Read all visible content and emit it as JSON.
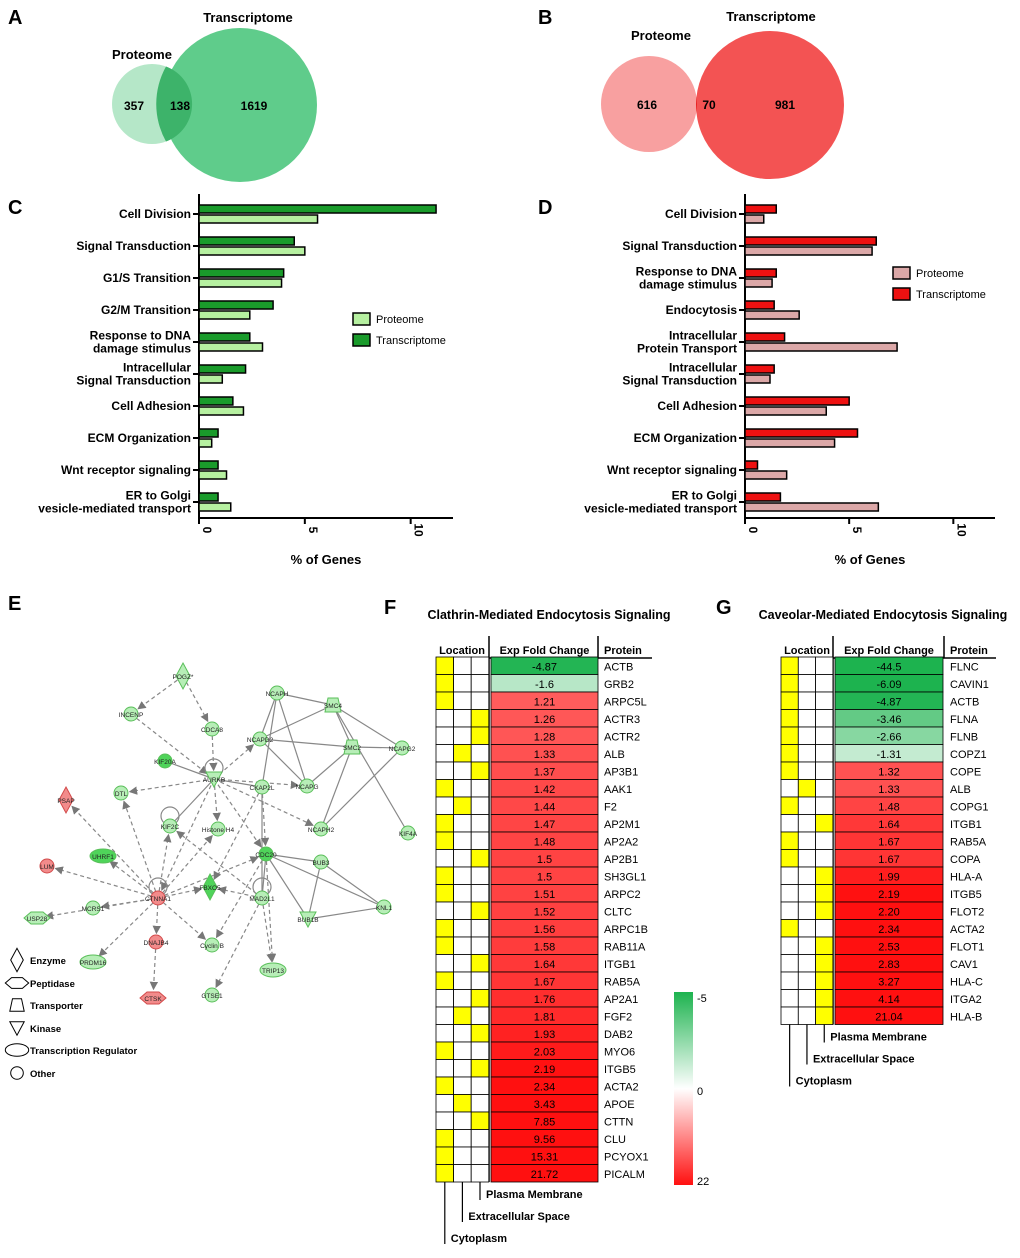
{
  "panel_letters": {
    "A": "A",
    "B": "B",
    "C": "C",
    "D": "D",
    "E": "E",
    "F": "F",
    "G": "G"
  },
  "colors": {
    "green_dark": "#1a9b2b",
    "green_light": "#b6f0a0",
    "red_dark": "#ee1111",
    "pink_light": "#dca8a8",
    "venn_green_small": "#b5e7c8",
    "venn_green_big": "#5fcc8b",
    "venn_green_overlap": "#3db36a",
    "venn_red_small": "#f8a0a0",
    "venn_red_big": "#f35353",
    "venn_red_overlap": "#e82525",
    "yellow": "#ffff00",
    "heat_green": "#1db34f",
    "heat_red": "#ff1010"
  },
  "venn_a": {
    "left_label": "Proteome",
    "right_label": "Transcriptome",
    "left_only": "357",
    "overlap": "138",
    "right_only": "1619"
  },
  "venn_b": {
    "left_label": "Proteome",
    "right_label": "Transcriptome",
    "left_only": "616",
    "overlap": "70",
    "right_only": "981"
  },
  "chart_data": [
    {
      "panel": "C",
      "type": "bar",
      "orientation": "horizontal",
      "xlabel": "% of Genes",
      "xlim": [
        0,
        12
      ],
      "xticks": [
        "0",
        "5",
        "10"
      ],
      "categories": [
        "Cell Division",
        "Signal Transduction",
        "G1/S Transition",
        "G2/M Transition",
        "Response to DNA damage stimulus",
        "Intracellular Signal Transduction",
        "Cell Adhesion",
        "ECM Organization",
        "Wnt receptor signaling",
        "ER to Golgi vesicle-mediated transport"
      ],
      "category_lines": [
        [
          "Cell Division"
        ],
        [
          "Signal Transduction"
        ],
        [
          "G1/S Transition"
        ],
        [
          "G2/M Transition"
        ],
        [
          "Response to DNA",
          "damage stimulus"
        ],
        [
          "Intracellular",
          "Signal Transduction"
        ],
        [
          "Cell Adhesion"
        ],
        [
          "ECM Organization"
        ],
        [
          "Wnt receptor signaling"
        ],
        [
          "ER to Golgi",
          "vesicle-mediated transport"
        ]
      ],
      "series": [
        {
          "name": "Transcriptome",
          "values": [
            11.2,
            4.5,
            4.0,
            3.5,
            2.4,
            2.2,
            1.6,
            0.9,
            0.9,
            0.9
          ]
        },
        {
          "name": "Proteome",
          "values": [
            5.6,
            5.0,
            3.9,
            2.4,
            3.0,
            1.1,
            2.1,
            0.6,
            1.3,
            1.5
          ]
        }
      ],
      "legend": [
        {
          "name": "Proteome"
        },
        {
          "name": "Transcriptome"
        }
      ],
      "legend_position": "right"
    },
    {
      "panel": "D",
      "type": "bar",
      "orientation": "horizontal",
      "xlabel": "% of Genes",
      "xlim": [
        0,
        12
      ],
      "xticks": [
        "0",
        "5",
        "10"
      ],
      "categories": [
        "Cell Division",
        "Signal Transduction",
        "Response to DNA damage stimulus",
        "Endocytosis",
        "Intracellular Protein Transport",
        "Intracellular Signal Transduction",
        "Cell Adhesion",
        "ECM Organization",
        "Wnt receptor signaling",
        "ER to Golgi vesicle-mediated transport"
      ],
      "category_lines": [
        [
          "Cell Division"
        ],
        [
          "Signal Transduction"
        ],
        [
          "Response to DNA",
          "damage stimulus"
        ],
        [
          "Endocytosis"
        ],
        [
          "Intracellular",
          "Protein Transport"
        ],
        [
          "Intracellular",
          "Signal Transduction"
        ],
        [
          "Cell Adhesion"
        ],
        [
          "ECM Organization"
        ],
        [
          "Wnt receptor signaling"
        ],
        [
          "ER to Golgi",
          "vesicle-mediated transport"
        ]
      ],
      "series": [
        {
          "name": "Transcriptome",
          "values": [
            1.5,
            6.3,
            1.5,
            1.4,
            1.9,
            1.4,
            5.0,
            5.4,
            0.6,
            1.7
          ]
        },
        {
          "name": "Proteome",
          "values": [
            0.9,
            6.1,
            1.3,
            2.6,
            7.3,
            1.2,
            3.9,
            4.3,
            2.0,
            6.4
          ]
        }
      ],
      "legend": [
        {
          "name": "Proteome"
        },
        {
          "name": "Transcriptome"
        }
      ],
      "legend_position": "top-right"
    },
    {
      "panel": "F",
      "type": "heatmap",
      "title": "Clathrin-Mediated Endocytosis Signaling",
      "headers": {
        "location": "Location",
        "fold": "Exp Fold Change",
        "protein": "Protein"
      },
      "location_legend": [
        "Plasma Membrane",
        "Extracellular Space",
        "Cytoplasm"
      ],
      "colorbar": {
        "max_label": "-5",
        "mid_label": "0",
        "min_label": "22"
      },
      "rows": [
        {
          "protein": "ACTB",
          "fold": "-4.87",
          "loc": [
            1,
            0,
            0
          ]
        },
        {
          "protein": "GRB2",
          "fold": "-1.6",
          "loc": [
            1,
            0,
            0
          ]
        },
        {
          "protein": "ARPC5L",
          "fold": "1.21",
          "loc": [
            1,
            0,
            0
          ]
        },
        {
          "protein": "ACTR3",
          "fold": "1.26",
          "loc": [
            0,
            0,
            1
          ]
        },
        {
          "protein": "ACTR2",
          "fold": "1.28",
          "loc": [
            0,
            0,
            1
          ]
        },
        {
          "protein": "ALB",
          "fold": "1.33",
          "loc": [
            0,
            1,
            0
          ]
        },
        {
          "protein": "AP3B1",
          "fold": "1.37",
          "loc": [
            0,
            0,
            1
          ]
        },
        {
          "protein": "AAK1",
          "fold": "1.42",
          "loc": [
            1,
            0,
            0
          ]
        },
        {
          "protein": "F2",
          "fold": "1.44",
          "loc": [
            0,
            1,
            0
          ]
        },
        {
          "protein": "AP2M1",
          "fold": "1.47",
          "loc": [
            1,
            0,
            0
          ]
        },
        {
          "protein": "AP2A2",
          "fold": "1.48",
          "loc": [
            1,
            0,
            0
          ]
        },
        {
          "protein": "AP2B1",
          "fold": "1.5",
          "loc": [
            0,
            0,
            1
          ]
        },
        {
          "protein": "SH3GL1",
          "fold": "1.5",
          "loc": [
            1,
            0,
            0
          ]
        },
        {
          "protein": "ARPC2",
          "fold": "1.51",
          "loc": [
            1,
            0,
            0
          ]
        },
        {
          "protein": "CLTC",
          "fold": "1.52",
          "loc": [
            0,
            0,
            1
          ]
        },
        {
          "protein": "ARPC1B",
          "fold": "1.56",
          "loc": [
            1,
            0,
            0
          ]
        },
        {
          "protein": "RAB11A",
          "fold": "1.58",
          "loc": [
            1,
            0,
            0
          ]
        },
        {
          "protein": "ITGB1",
          "fold": "1.64",
          "loc": [
            0,
            0,
            1
          ]
        },
        {
          "protein": "RAB5A",
          "fold": "1.67",
          "loc": [
            1,
            0,
            0
          ]
        },
        {
          "protein": "AP2A1",
          "fold": "1.76",
          "loc": [
            0,
            0,
            1
          ]
        },
        {
          "protein": "FGF2",
          "fold": "1.81",
          "loc": [
            0,
            1,
            0
          ]
        },
        {
          "protein": "DAB2",
          "fold": "1.93",
          "loc": [
            0,
            0,
            1
          ]
        },
        {
          "protein": "MYO6",
          "fold": "2.03",
          "loc": [
            1,
            0,
            0
          ]
        },
        {
          "protein": "ITGB5",
          "fold": "2.19",
          "loc": [
            0,
            0,
            1
          ]
        },
        {
          "protein": "ACTA2",
          "fold": "2.34",
          "loc": [
            1,
            0,
            0
          ]
        },
        {
          "protein": "APOE",
          "fold": "3.43",
          "loc": [
            0,
            1,
            0
          ]
        },
        {
          "protein": "CTTN",
          "fold": "7.85",
          "loc": [
            0,
            0,
            1
          ]
        },
        {
          "protein": "CLU",
          "fold": "9.56",
          "loc": [
            1,
            0,
            0
          ]
        },
        {
          "protein": "PCYOX1",
          "fold": "15.31",
          "loc": [
            1,
            0,
            0
          ]
        },
        {
          "protein": "PICALM",
          "fold": "21.72",
          "loc": [
            1,
            0,
            0
          ]
        }
      ]
    },
    {
      "panel": "G",
      "type": "heatmap",
      "title": "Caveolar-Mediated Endocytosis Signaling",
      "headers": {
        "location": "Location",
        "fold": "Exp Fold Change",
        "protein": "Protein"
      },
      "location_legend": [
        "Plasma Membrane",
        "Extracellular Space",
        "Cytoplasm"
      ],
      "rows": [
        {
          "protein": "FLNC",
          "fold": "-44.5",
          "loc": [
            1,
            0,
            0
          ]
        },
        {
          "protein": "CAVIN1",
          "fold": "-6.09",
          "loc": [
            1,
            0,
            0
          ]
        },
        {
          "protein": "ACTB",
          "fold": "-4.87",
          "loc": [
            1,
            0,
            0
          ]
        },
        {
          "protein": "FLNA",
          "fold": "-3.46",
          "loc": [
            1,
            0,
            0
          ]
        },
        {
          "protein": "FLNB",
          "fold": "-2.66",
          "loc": [
            1,
            0,
            0
          ]
        },
        {
          "protein": "COPZ1",
          "fold": "-1.31",
          "loc": [
            1,
            0,
            0
          ]
        },
        {
          "protein": "COPE",
          "fold": "1.32",
          "loc": [
            1,
            0,
            0
          ]
        },
        {
          "protein": "ALB",
          "fold": "1.33",
          "loc": [
            0,
            1,
            0
          ]
        },
        {
          "protein": "COPG1",
          "fold": "1.48",
          "loc": [
            1,
            0,
            0
          ]
        },
        {
          "protein": "ITGB1",
          "fold": "1.64",
          "loc": [
            0,
            0,
            1
          ]
        },
        {
          "protein": "RAB5A",
          "fold": "1.67",
          "loc": [
            1,
            0,
            0
          ]
        },
        {
          "protein": "COPA",
          "fold": "1.67",
          "loc": [
            1,
            0,
            0
          ]
        },
        {
          "protein": "HLA-A",
          "fold": "1.99",
          "loc": [
            0,
            0,
            1
          ]
        },
        {
          "protein": "ITGB5",
          "fold": "2.19",
          "loc": [
            0,
            0,
            1
          ]
        },
        {
          "protein": "FLOT2",
          "fold": "2.20",
          "loc": [
            0,
            0,
            1
          ]
        },
        {
          "protein": "ACTA2",
          "fold": "2.34",
          "loc": [
            1,
            0,
            0
          ]
        },
        {
          "protein": "FLOT1",
          "fold": "2.53",
          "loc": [
            0,
            0,
            1
          ]
        },
        {
          "protein": "CAV1",
          "fold": "2.83",
          "loc": [
            0,
            0,
            1
          ]
        },
        {
          "protein": "HLA-C",
          "fold": "3.27",
          "loc": [
            0,
            0,
            1
          ]
        },
        {
          "protein": "ITGA2",
          "fold": "4.14",
          "loc": [
            0,
            0,
            1
          ]
        },
        {
          "protein": "HLA-B",
          "fold": "21.04",
          "loc": [
            0,
            0,
            1
          ]
        }
      ]
    }
  ],
  "network": {
    "nodes": [
      {
        "id": "POGZ",
        "label": "POGZ*",
        "type": "enzyme",
        "color": "pale"
      },
      {
        "id": "INCENP",
        "label": "INCENP",
        "type": "other",
        "color": "pale"
      },
      {
        "id": "CDCA8",
        "label": "CDCA8",
        "type": "other",
        "color": "pale"
      },
      {
        "id": "NCAPH",
        "label": "NCAPH",
        "type": "other",
        "color": "pale"
      },
      {
        "id": "SMC4",
        "label": "SMC4",
        "type": "transporter",
        "color": "pale"
      },
      {
        "id": "NCAPD2",
        "label": "NCAPD2",
        "type": "other",
        "color": "pale"
      },
      {
        "id": "SMC2",
        "label": "SMC2",
        "type": "transporter",
        "color": "pale"
      },
      {
        "id": "NCAPG2",
        "label": "NCAPG2",
        "type": "other",
        "color": "pale"
      },
      {
        "id": "KIF20A",
        "label": "KIF20A",
        "type": "other",
        "color": "bright"
      },
      {
        "id": "AURKB",
        "label": "AURKB",
        "type": "kinase",
        "color": "pale"
      },
      {
        "id": "NCAPG",
        "label": "NCAPG",
        "type": "other",
        "color": "pale"
      },
      {
        "id": "CKAP2L",
        "label": "CKAP2L",
        "type": "other",
        "color": "pale"
      },
      {
        "id": "NCAPH2",
        "label": "NCAPH2",
        "type": "other",
        "color": "pale"
      },
      {
        "id": "KIF4A",
        "label": "KIF4A",
        "type": "other",
        "color": "pale"
      },
      {
        "id": "PSAP",
        "label": "PSAP",
        "type": "enzyme",
        "color": "red"
      },
      {
        "id": "DTL",
        "label": "DTL",
        "type": "other",
        "color": "pale"
      },
      {
        "id": "KIF2C",
        "label": "KIF2C",
        "type": "other",
        "color": "pale"
      },
      {
        "id": "HistoneH4",
        "label": "Histone H4",
        "type": "other",
        "color": "pale"
      },
      {
        "id": "UHRF1",
        "label": "UHRF1",
        "type": "transcription",
        "color": "bright"
      },
      {
        "id": "CDC20",
        "label": "CDC20",
        "type": "other",
        "color": "bright"
      },
      {
        "id": "BUB3",
        "label": "BUB3",
        "type": "other",
        "color": "pale"
      },
      {
        "id": "LUM",
        "label": "LUM",
        "type": "other",
        "color": "red"
      },
      {
        "id": "CTNNA1",
        "label": "CTNNA1",
        "type": "other",
        "color": "red"
      },
      {
        "id": "FBXO5",
        "label": "FBXO5",
        "type": "enzyme",
        "color": "bright"
      },
      {
        "id": "MAD2L1",
        "label": "MAD2L1",
        "type": "other",
        "color": "pale"
      },
      {
        "id": "KNL1",
        "label": "KNL1",
        "type": "other",
        "color": "pale"
      },
      {
        "id": "USP28",
        "label": "USP28",
        "type": "peptidase",
        "color": "pale"
      },
      {
        "id": "MCRS1",
        "label": "MCRS1",
        "type": "other",
        "color": "pale"
      },
      {
        "id": "BUB1B",
        "label": "BUB1B",
        "type": "kinase",
        "color": "pale"
      },
      {
        "id": "DNAJB4",
        "label": "DNAJB4",
        "type": "other",
        "color": "red"
      },
      {
        "id": "CyclinB",
        "label": "Cyclin B",
        "type": "other",
        "color": "pale"
      },
      {
        "id": "PRDM16",
        "label": "PRDM16",
        "type": "transcription",
        "color": "pale"
      },
      {
        "id": "TRIP13",
        "label": "TRIP13",
        "type": "transcription",
        "color": "pale"
      },
      {
        "id": "CTSK",
        "label": "CTSK",
        "type": "peptidase",
        "color": "red"
      },
      {
        "id": "GTSE1",
        "label": "GTSE1",
        "type": "other",
        "color": "pale"
      }
    ],
    "legend": [
      {
        "shape": "enzyme",
        "label": "Enzyme"
      },
      {
        "shape": "peptidase",
        "label": "Peptidase"
      },
      {
        "shape": "transporter",
        "label": "Transporter"
      },
      {
        "shape": "kinase",
        "label": "Kinase"
      },
      {
        "shape": "transcription",
        "label": "Transcription Regulator"
      },
      {
        "shape": "other",
        "label": "Other"
      }
    ]
  }
}
